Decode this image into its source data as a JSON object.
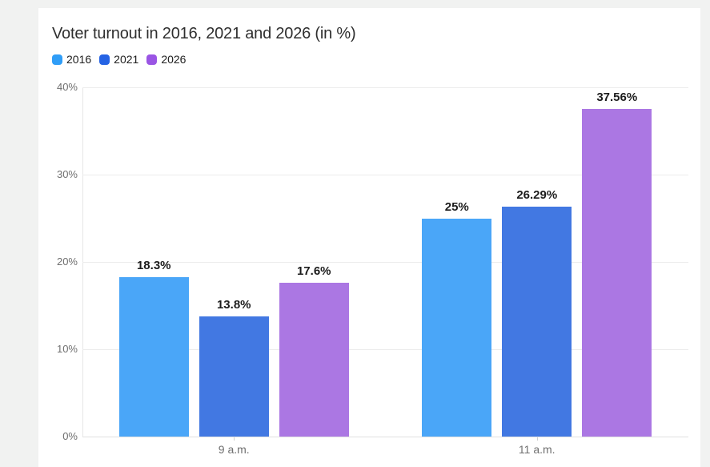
{
  "page": {
    "background": "#f1f2f1",
    "card_background": "#ffffff"
  },
  "chart_data": {
    "type": "bar",
    "title": "Voter turnout in 2016, 2021 and 2026 (in %)",
    "categories": [
      "9 a.m.",
      "11 a.m."
    ],
    "series": [
      {
        "name": "2016",
        "color": "#2f9df7",
        "bar_color": "#4aa6f8",
        "values": [
          18.3,
          25
        ],
        "labels": [
          "18.3%",
          "25%"
        ]
      },
      {
        "name": "2021",
        "color": "#2563e4",
        "bar_color": "#4278e2",
        "values": [
          13.8,
          26.29
        ],
        "labels": [
          "13.8%",
          "26.29%"
        ]
      },
      {
        "name": "2026",
        "color": "#9a55e4",
        "bar_color": "#ab77e3",
        "values": [
          17.6,
          37.56
        ],
        "labels": [
          "17.6%",
          "37.56%"
        ]
      }
    ],
    "y_axis": {
      "ticks": [
        "0%",
        "10%",
        "20%",
        "30%",
        "40%"
      ],
      "tick_values": [
        0,
        10,
        20,
        30,
        40
      ],
      "max": 40
    },
    "xlabel": "",
    "ylabel": "",
    "grid": "horizontal",
    "legend_position": "top-left"
  }
}
